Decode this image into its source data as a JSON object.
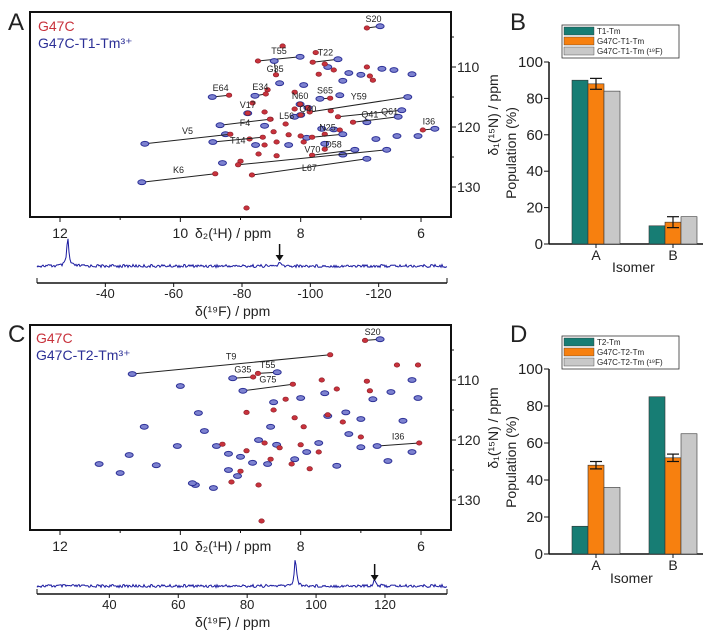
{
  "panels": {
    "A": "A",
    "B": "B",
    "C": "C",
    "D": "D"
  },
  "chart_data": [
    {
      "id": "A",
      "type": "scatter",
      "subtype": "2D HSQC overlay",
      "legend": [
        {
          "name": "G47C",
          "color": "#c8323c"
        },
        {
          "name": "G47C-T1-Tm³⁺",
          "color": "#2b2f96"
        }
      ],
      "xlabel": "δ₂(¹H) / ppm",
      "ylabel": "δ₁(¹⁵N) / ppm",
      "xticks": [
        12,
        10,
        8,
        6
      ],
      "yticks": [
        110,
        120,
        130
      ],
      "xlim": [
        12.5,
        5.5
      ],
      "ylim": [
        102,
        135
      ],
      "assignments": [
        {
          "label": "S20",
          "red": [
            6.9,
            103.5
          ],
          "blue": [
            6.68,
            103.2
          ]
        },
        {
          "label": "T55",
          "red": [
            8.71,
            109.0
          ],
          "blue": [
            8.01,
            108.3
          ]
        },
        {
          "label": "T22",
          "red": [
            7.8,
            109.2
          ],
          "blue": [
            7.38,
            108.7
          ]
        },
        {
          "label": "G35",
          "red": [
            8.41,
            111.3
          ],
          "blue": [
            8.44,
            109.0
          ]
        },
        {
          "label": "E64",
          "red": [
            9.19,
            114.7
          ],
          "blue": [
            9.47,
            115.0
          ]
        },
        {
          "label": "E34",
          "red": [
            8.58,
            114.5
          ],
          "blue": [
            8.76,
            114.8
          ]
        },
        {
          "label": "V17",
          "red": [
            8.88,
            117.7
          ],
          "blue": [
            8.88,
            117.7
          ]
        },
        {
          "label": "N60",
          "red": [
            8.01,
            116.2
          ],
          "blue": [
            8.01,
            116.2
          ]
        },
        {
          "label": "S65",
          "red": [
            7.51,
            115.2
          ],
          "blue": [
            7.68,
            115.3
          ]
        },
        {
          "label": "Y59",
          "red": [
            7.85,
            117.5
          ],
          "blue": [
            6.22,
            115.0
          ]
        },
        {
          "label": "Q40",
          "red": [
            7.88,
            116.8
          ],
          "blue": [
            7.88,
            116.8
          ]
        },
        {
          "label": "L56",
          "red": [
            8.0,
            118.0
          ],
          "blue": [
            8.0,
            118.0
          ]
        },
        {
          "label": "Q41",
          "red": [
            7.38,
            118.3
          ],
          "blue": [
            6.32,
            117.2
          ]
        },
        {
          "label": "Q61",
          "red": [
            7.13,
            119.2
          ],
          "blue": [
            6.38,
            118.3
          ]
        },
        {
          "label": "F4",
          "red": [
            8.51,
            118.7
          ],
          "blue": [
            9.34,
            119.7
          ]
        },
        {
          "label": "V5",
          "red": [
            9.17,
            121.2
          ],
          "blue": [
            10.59,
            122.8
          ]
        },
        {
          "label": "T14",
          "red": [
            8.63,
            121.7
          ],
          "blue": [
            9.46,
            122.5
          ]
        },
        {
          "label": "N25",
          "red": [
            7.81,
            121.7
          ],
          "blue": [
            7.3,
            121.2
          ]
        },
        {
          "label": "I36",
          "red": [
            5.97,
            120.5
          ],
          "blue": [
            5.77,
            120.3
          ]
        },
        {
          "label": "D58",
          "red": [
            7.81,
            124.7
          ],
          "blue": [
            7.1,
            123.8
          ]
        },
        {
          "label": "V70",
          "red": [
            9.04,
            126.3
          ],
          "blue": [
            6.57,
            123.8
          ]
        },
        {
          "label": "L67",
          "red": [
            8.81,
            128.0
          ],
          "blue": [
            6.9,
            125.3
          ]
        },
        {
          "label": "K6",
          "red": [
            9.42,
            127.8
          ],
          "blue": [
            10.64,
            129.2
          ]
        }
      ],
      "peaks_red": [
        [
          8.3,
          106.5
        ],
        [
          7.75,
          107.6
        ],
        [
          7.6,
          109.5
        ],
        [
          7.45,
          110.5
        ],
        [
          7.7,
          111.2
        ],
        [
          6.9,
          110
        ],
        [
          6.85,
          111.5
        ],
        [
          6.8,
          112.2
        ],
        [
          8.55,
          113.8
        ],
        [
          8.1,
          114.2
        ],
        [
          8.8,
          116
        ],
        [
          8.6,
          117.5
        ],
        [
          8.5,
          118.7
        ],
        [
          8.25,
          119.5
        ],
        [
          8.45,
          120.8
        ],
        [
          8.2,
          121.3
        ],
        [
          8.4,
          122.5
        ],
        [
          8.6,
          123.0
        ],
        [
          8.0,
          121.5
        ],
        [
          7.95,
          122.5
        ],
        [
          7.6,
          123.7
        ],
        [
          8.7,
          124.5
        ],
        [
          8.4,
          124.8
        ],
        [
          7.5,
          117.3
        ],
        [
          9.0,
          125.7
        ],
        [
          8.85,
          122.0
        ],
        [
          8.1,
          117.0
        ],
        [
          8.9,
          133.5
        ],
        [
          7.35,
          120.5
        ],
        [
          7.6,
          121.2
        ]
      ],
      "peaks_blue": [
        [
          7.55,
          110.0
        ],
        [
          7.2,
          111.0
        ],
        [
          7.0,
          111.3
        ],
        [
          6.65,
          110.3
        ],
        [
          6.45,
          110.5
        ],
        [
          6.15,
          111.2
        ],
        [
          7.3,
          112.3
        ],
        [
          8.35,
          112.7
        ],
        [
          7.95,
          113.0
        ],
        [
          7.35,
          114.7
        ],
        [
          8.1,
          118.3
        ],
        [
          7.65,
          120.3
        ],
        [
          7.45,
          120.4
        ],
        [
          6.75,
          122.0
        ],
        [
          6.4,
          121.5
        ],
        [
          6.05,
          121.5
        ],
        [
          7.9,
          121.8
        ],
        [
          8.2,
          123.0
        ],
        [
          7.6,
          122.8
        ],
        [
          9.3,
          126.0
        ],
        [
          9.25,
          121.2
        ],
        [
          8.75,
          123.0
        ],
        [
          6.9,
          119.2
        ],
        [
          7.3,
          124.6
        ],
        [
          8.6,
          119.8
        ]
      ],
      "f19": {
        "xlabel": "δ(¹⁹F) / ppm",
        "xticks": [
          -40,
          -60,
          -80,
          -100,
          -120
        ],
        "xlim": [
          -20,
          -140
        ],
        "peaks": [
          [
            -29,
            1.0
          ],
          [
            -91,
            0.12
          ]
        ],
        "arrow_at": -91
      }
    },
    {
      "id": "B",
      "type": "bar",
      "categories": [
        "A",
        "B"
      ],
      "xlabel": "Isomer",
      "ylabel": "Population (%)",
      "ylim": [
        0,
        100
      ],
      "yticks": [
        0,
        20,
        40,
        60,
        80,
        100
      ],
      "legend_position": "top",
      "series": [
        {
          "name": "T1-Tm",
          "color": "#177d74",
          "values": [
            90,
            10
          ]
        },
        {
          "name": "G47C-T1-Tm",
          "color": "#f7800f",
          "values": [
            88,
            12
          ],
          "errors": [
            3,
            3
          ]
        },
        {
          "name": "G47C-T1-Tm (¹⁹F)",
          "color": "#c8c8c8",
          "values": [
            84,
            15
          ]
        }
      ]
    },
    {
      "id": "C",
      "type": "scatter",
      "subtype": "2D HSQC overlay",
      "legend": [
        {
          "name": "G47C",
          "color": "#c8323c"
        },
        {
          "name": "G47C-T2-Tm³⁺",
          "color": "#2b2f96"
        }
      ],
      "xlabel": "δ₂(¹H) / ppm",
      "ylabel": "δ₁(¹⁵N) / ppm",
      "xticks": [
        12,
        10,
        8,
        6
      ],
      "yticks": [
        110,
        120,
        130
      ],
      "xlim": [
        12.5,
        5.5
      ],
      "ylim": [
        102,
        135
      ],
      "assignments": [
        {
          "label": "S20",
          "red": [
            6.93,
            103.4
          ],
          "blue": [
            6.68,
            103.2
          ]
        },
        {
          "label": "T9",
          "red": [
            7.51,
            105.8
          ],
          "blue": [
            10.8,
            109.0
          ]
        },
        {
          "label": "T55",
          "red": [
            8.71,
            108.9
          ],
          "blue": [
            8.39,
            108.7
          ]
        },
        {
          "label": "G35",
          "red": [
            8.79,
            109.5
          ],
          "blue": [
            9.13,
            109.7
          ]
        },
        {
          "label": "G75",
          "red": [
            8.13,
            110.7
          ],
          "blue": [
            8.96,
            111.8
          ]
        },
        {
          "label": "I36",
          "red": [
            6.03,
            120.5
          ],
          "blue": [
            6.73,
            121.0
          ]
        }
      ],
      "peaks_red": [
        [
          8.25,
          113.2
        ],
        [
          8.45,
          115.0
        ],
        [
          8.9,
          115.4
        ],
        [
          8.1,
          116.3
        ],
        [
          7.95,
          117.8
        ],
        [
          7.55,
          115.8
        ],
        [
          7.3,
          117.0
        ],
        [
          7.0,
          119.5
        ],
        [
          8.6,
          120.5
        ],
        [
          8.35,
          121.3
        ],
        [
          8.0,
          120.8
        ],
        [
          7.7,
          122.0
        ],
        [
          8.9,
          121.8
        ],
        [
          9.3,
          120.7
        ],
        [
          8.5,
          123.2
        ],
        [
          8.15,
          124.0
        ],
        [
          7.85,
          124.8
        ],
        [
          9.0,
          125.2
        ],
        [
          9.15,
          127.0
        ],
        [
          8.7,
          127.5
        ],
        [
          8.65,
          133.5
        ],
        [
          6.9,
          110.2
        ],
        [
          6.85,
          111.8
        ],
        [
          7.65,
          110.0
        ],
        [
          7.4,
          111.5
        ],
        [
          6.4,
          107.5
        ],
        [
          6.05,
          107.5
        ]
      ],
      "peaks_blue": [
        [
          10.0,
          111.0
        ],
        [
          10.6,
          117.8
        ],
        [
          10.85,
          122.5
        ],
        [
          11.35,
          124.0
        ],
        [
          10.4,
          124.2
        ],
        [
          9.7,
          115.5
        ],
        [
          9.6,
          118.5
        ],
        [
          9.4,
          121.0
        ],
        [
          9.2,
          122.3
        ],
        [
          9.0,
          122.8
        ],
        [
          9.2,
          125.0
        ],
        [
          9.05,
          126.0
        ],
        [
          8.8,
          123.8
        ],
        [
          8.5,
          117.8
        ],
        [
          8.45,
          113.7
        ],
        [
          8.0,
          113.0
        ],
        [
          7.6,
          112.2
        ],
        [
          7.55,
          116.0
        ],
        [
          7.25,
          115.4
        ],
        [
          7.0,
          116.5
        ],
        [
          6.8,
          113.2
        ],
        [
          6.5,
          112.0
        ],
        [
          6.15,
          110.0
        ],
        [
          6.05,
          113.0
        ],
        [
          6.3,
          116.8
        ],
        [
          6.15,
          122.0
        ],
        [
          6.55,
          123.5
        ],
        [
          7.0,
          121.2
        ],
        [
          7.2,
          119.0
        ],
        [
          7.7,
          120.5
        ],
        [
          7.9,
          122.0
        ],
        [
          8.1,
          123.2
        ],
        [
          8.55,
          124.0
        ],
        [
          8.4,
          120.8
        ],
        [
          9.75,
          127.5
        ],
        [
          9.45,
          128.0
        ],
        [
          8.7,
          120.0
        ],
        [
          7.4,
          124.3
        ],
        [
          11.0,
          125.5
        ],
        [
          10.05,
          121.0
        ],
        [
          9.8,
          127.2
        ]
      ],
      "f19": {
        "xlabel": "δ(¹⁹F) / ppm",
        "xticks": [
          40,
          60,
          80,
          100,
          120
        ],
        "xlim": [
          19,
          138
        ],
        "peaks": [
          [
            94,
            1.0
          ],
          [
            117,
            0.25
          ]
        ],
        "arrow_at": 117
      }
    },
    {
      "id": "D",
      "type": "bar",
      "categories": [
        "A",
        "B"
      ],
      "xlabel": "Isomer",
      "ylabel": "Population (%)",
      "ylim": [
        0,
        100
      ],
      "yticks": [
        0,
        20,
        40,
        60,
        80,
        100
      ],
      "legend_position": "top",
      "series": [
        {
          "name": "T2-Tm",
          "color": "#177d74",
          "values": [
            15,
            85
          ]
        },
        {
          "name": "G47C-T2-Tm",
          "color": "#f7800f",
          "values": [
            48,
            52
          ],
          "errors": [
            2,
            2
          ]
        },
        {
          "name": "G47C-T2-Tm (¹⁹F)",
          "color": "#c8c8c8",
          "values": [
            36,
            65
          ]
        }
      ]
    }
  ]
}
